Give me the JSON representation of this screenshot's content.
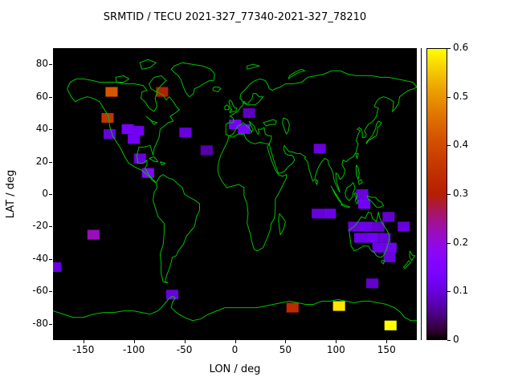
{
  "title": "SRMTID / TECU 2021-327_77340-2021-327_78210",
  "chart_data": {
    "type": "heatmap",
    "title": "SRMTID / TECU 2021-327_77340-2021-327_78210",
    "xlabel": "LON / deg",
    "ylabel": "LAT / deg",
    "xlim": [
      -180,
      180
    ],
    "ylim": [
      -90,
      90
    ],
    "xticks": [
      -150,
      -100,
      -50,
      0,
      50,
      100,
      150
    ],
    "yticks": [
      -80,
      -60,
      -40,
      -20,
      0,
      20,
      40,
      60,
      80
    ],
    "grid": false,
    "background_color": "#000000",
    "coastline_color": "#00c000",
    "colorbar": {
      "min": 0,
      "max": 0.6,
      "ticks": [
        0,
        0.1,
        0.2,
        0.3,
        0.4,
        0.5,
        0.6
      ],
      "palette": "gnuplot pm3d rgbformulae 7,5,15 (black-violet-red-yellow)",
      "position": "right"
    },
    "cell_size_deg": {
      "lon": 12,
      "lat": 6
    },
    "cells": [
      {
        "lon": -122,
        "lat": 63,
        "value": 0.42
      },
      {
        "lon": -72,
        "lat": 63,
        "value": 0.3
      },
      {
        "lon": -126,
        "lat": 47,
        "value": 0.35
      },
      {
        "lon": -124,
        "lat": 37,
        "value": 0.1
      },
      {
        "lon": -106,
        "lat": 40,
        "value": 0.13
      },
      {
        "lon": -96,
        "lat": 39,
        "value": 0.12
      },
      {
        "lon": -100,
        "lat": 34,
        "value": 0.12
      },
      {
        "lon": -94,
        "lat": 22,
        "value": 0.1
      },
      {
        "lon": -86,
        "lat": 13,
        "value": 0.16
      },
      {
        "lon": -49,
        "lat": 38,
        "value": 0.1
      },
      {
        "lon": -28,
        "lat": 27,
        "value": 0.07
      },
      {
        "lon": 0,
        "lat": 43,
        "value": 0.12
      },
      {
        "lon": 9,
        "lat": 40,
        "value": 0.14
      },
      {
        "lon": 14,
        "lat": 50,
        "value": 0.08
      },
      {
        "lon": 84,
        "lat": 28,
        "value": 0.1
      },
      {
        "lon": -140,
        "lat": -25,
        "value": 0.22
      },
      {
        "lon": 82,
        "lat": -12,
        "value": 0.1
      },
      {
        "lon": 94,
        "lat": -12,
        "value": 0.11
      },
      {
        "lon": 128,
        "lat": -6,
        "value": 0.12
      },
      {
        "lon": 126,
        "lat": 0,
        "value": 0.1
      },
      {
        "lon": 118,
        "lat": -20,
        "value": 0.1
      },
      {
        "lon": 130,
        "lat": -20,
        "value": 0.11
      },
      {
        "lon": 142,
        "lat": -20,
        "value": 0.09
      },
      {
        "lon": 152,
        "lat": -14,
        "value": 0.09
      },
      {
        "lon": 124,
        "lat": -27,
        "value": 0.11
      },
      {
        "lon": 136,
        "lat": -27,
        "value": 0.12
      },
      {
        "lon": 148,
        "lat": -27,
        "value": 0.1
      },
      {
        "lon": 142,
        "lat": -33,
        "value": 0.11
      },
      {
        "lon": 154,
        "lat": -33,
        "value": 0.12
      },
      {
        "lon": 167,
        "lat": -20,
        "value": 0.1
      },
      {
        "lon": 153,
        "lat": -39,
        "value": 0.1
      },
      {
        "lon": 136,
        "lat": -55,
        "value": 0.09
      },
      {
        "lon": -178,
        "lat": -45,
        "value": 0.1
      },
      {
        "lon": -62,
        "lat": -62,
        "value": 0.1
      },
      {
        "lon": 57,
        "lat": -70,
        "value": 0.33
      },
      {
        "lon": 103,
        "lat": -69,
        "value": 0.58
      },
      {
        "lon": 154,
        "lat": -81,
        "value": 0.6
      }
    ]
  }
}
